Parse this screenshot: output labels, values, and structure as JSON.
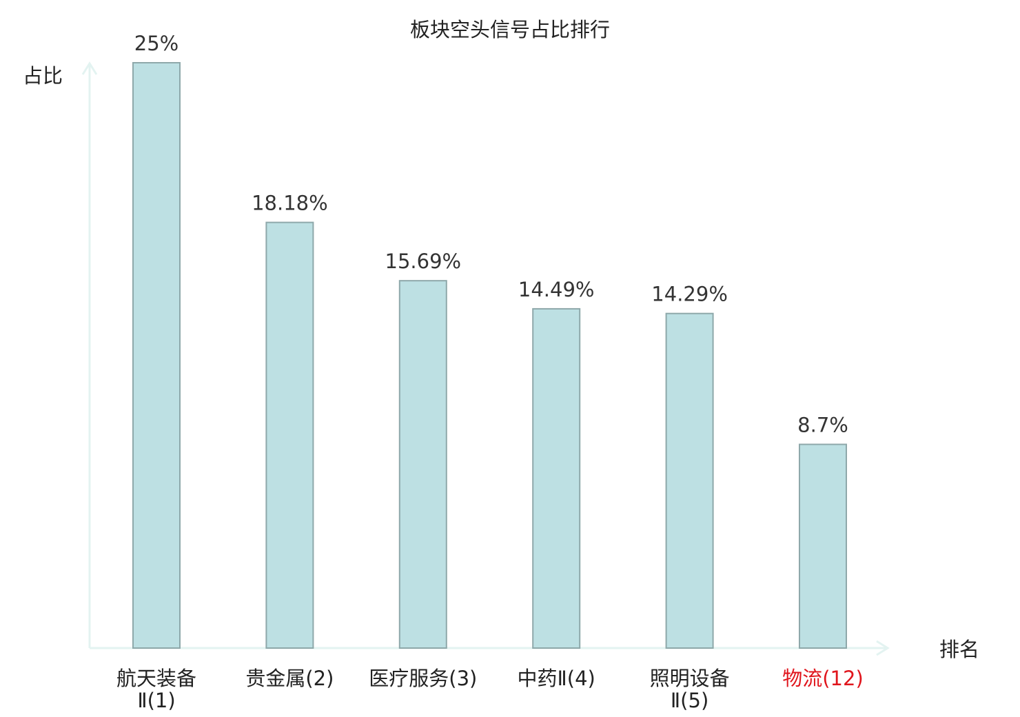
{
  "chart_data": {
    "type": "bar",
    "title": "板块空头信号占比排行",
    "ylabel": "占比",
    "xlabel": "排名",
    "ylim": [
      0,
      25
    ],
    "grid": false,
    "categories": [
      [
        "航天装备",
        "Ⅱ(1)"
      ],
      [
        "贵金属(2)"
      ],
      [
        "医疗服务(3)"
      ],
      [
        "中药Ⅱ(4)"
      ],
      [
        "照明设备",
        "Ⅱ(5)"
      ],
      [
        "物流(12)"
      ]
    ],
    "values": [
      25,
      18.18,
      15.69,
      14.49,
      14.29,
      8.7
    ],
    "value_labels": [
      "25%",
      "18.18%",
      "15.69%",
      "14.49%",
      "14.29%",
      "8.7%"
    ],
    "highlight_index": 5,
    "colors": {
      "bar_fill": "#bde0e3",
      "bar_stroke": "#8ea8aa",
      "axis": "#e3f3f1",
      "highlight_text": "#e0161d"
    }
  }
}
